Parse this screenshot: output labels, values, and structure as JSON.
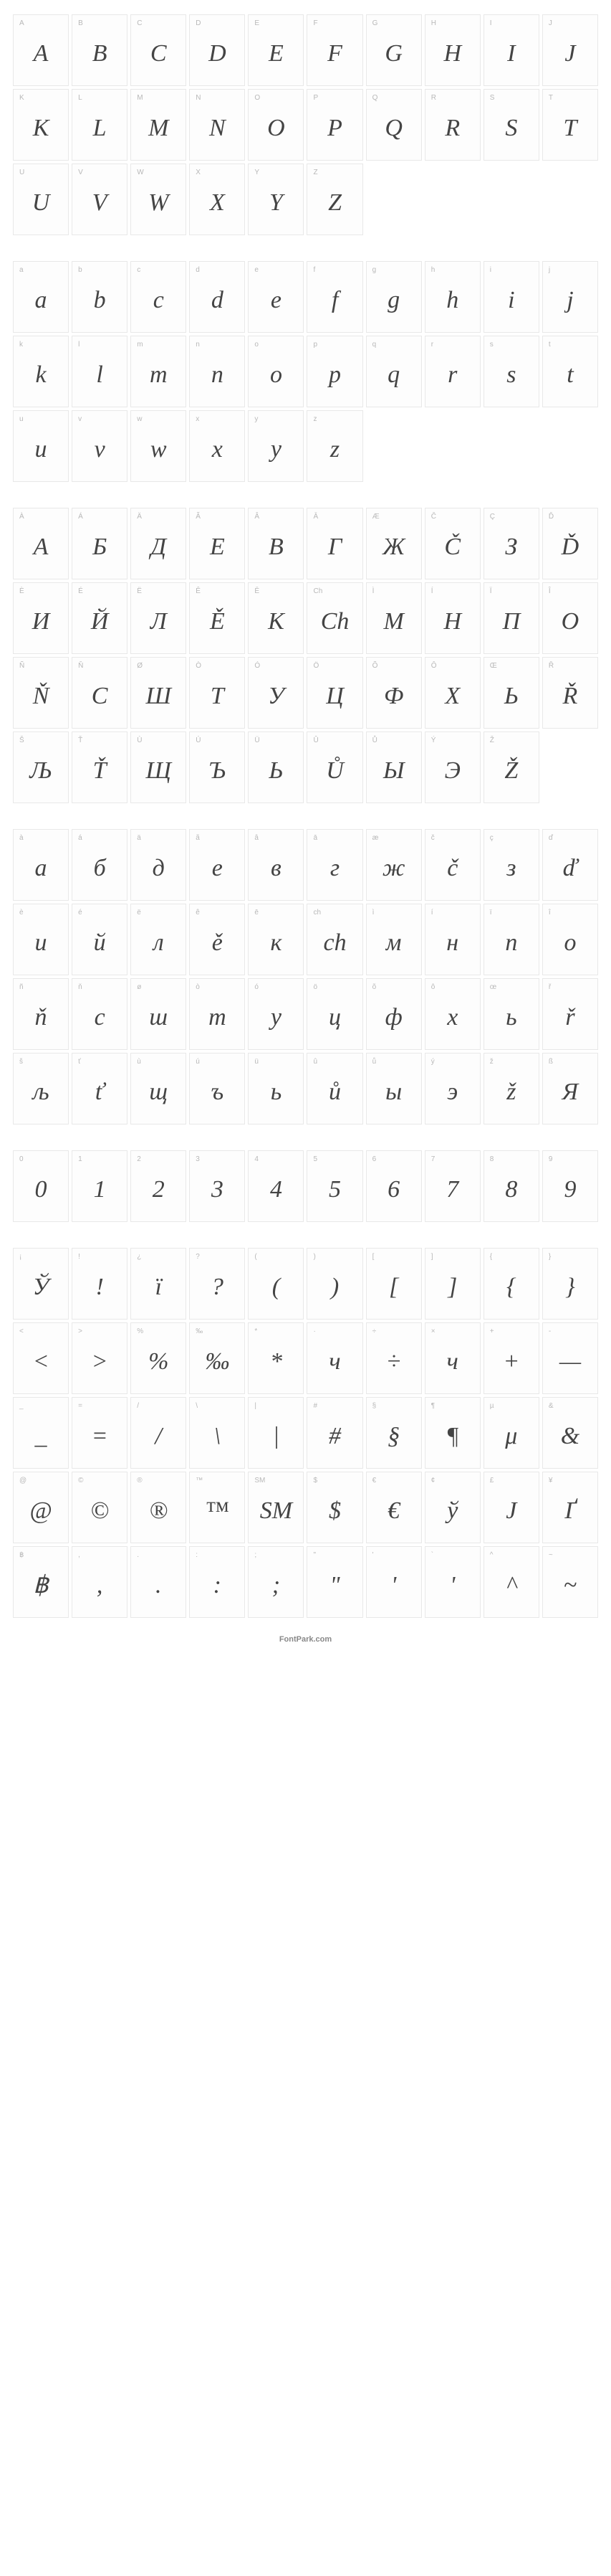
{
  "footer": "FontPark.com",
  "sections": [
    {
      "cells": [
        {
          "key": "A",
          "glyph": "A"
        },
        {
          "key": "B",
          "glyph": "B"
        },
        {
          "key": "C",
          "glyph": "C"
        },
        {
          "key": "D",
          "glyph": "D"
        },
        {
          "key": "E",
          "glyph": "E"
        },
        {
          "key": "F",
          "glyph": "F"
        },
        {
          "key": "G",
          "glyph": "G"
        },
        {
          "key": "H",
          "glyph": "H"
        },
        {
          "key": "I",
          "glyph": "I"
        },
        {
          "key": "J",
          "glyph": "J"
        },
        {
          "key": "K",
          "glyph": "K"
        },
        {
          "key": "L",
          "glyph": "L"
        },
        {
          "key": "M",
          "glyph": "M"
        },
        {
          "key": "N",
          "glyph": "N"
        },
        {
          "key": "O",
          "glyph": "O"
        },
        {
          "key": "P",
          "glyph": "P"
        },
        {
          "key": "Q",
          "glyph": "Q"
        },
        {
          "key": "R",
          "glyph": "R"
        },
        {
          "key": "S",
          "glyph": "S"
        },
        {
          "key": "T",
          "glyph": "T"
        },
        {
          "key": "U",
          "glyph": "U"
        },
        {
          "key": "V",
          "glyph": "V"
        },
        {
          "key": "W",
          "glyph": "W"
        },
        {
          "key": "X",
          "glyph": "X"
        },
        {
          "key": "Y",
          "glyph": "Y"
        },
        {
          "key": "Z",
          "glyph": "Z"
        },
        {
          "empty": true
        },
        {
          "empty": true
        },
        {
          "empty": true
        },
        {
          "empty": true
        }
      ]
    },
    {
      "cells": [
        {
          "key": "a",
          "glyph": "a"
        },
        {
          "key": "b",
          "glyph": "b"
        },
        {
          "key": "c",
          "glyph": "c"
        },
        {
          "key": "d",
          "glyph": "d"
        },
        {
          "key": "e",
          "glyph": "e"
        },
        {
          "key": "f",
          "glyph": "f"
        },
        {
          "key": "g",
          "glyph": "g"
        },
        {
          "key": "h",
          "glyph": "h"
        },
        {
          "key": "i",
          "glyph": "i"
        },
        {
          "key": "j",
          "glyph": "j"
        },
        {
          "key": "k",
          "glyph": "k"
        },
        {
          "key": "l",
          "glyph": "l"
        },
        {
          "key": "m",
          "glyph": "m"
        },
        {
          "key": "n",
          "glyph": "n"
        },
        {
          "key": "o",
          "glyph": "o"
        },
        {
          "key": "p",
          "glyph": "p"
        },
        {
          "key": "q",
          "glyph": "q"
        },
        {
          "key": "r",
          "glyph": "r"
        },
        {
          "key": "s",
          "glyph": "s"
        },
        {
          "key": "t",
          "glyph": "t"
        },
        {
          "key": "u",
          "glyph": "u"
        },
        {
          "key": "v",
          "glyph": "v"
        },
        {
          "key": "w",
          "glyph": "w"
        },
        {
          "key": "x",
          "glyph": "x"
        },
        {
          "key": "y",
          "glyph": "y"
        },
        {
          "key": "z",
          "glyph": "z"
        },
        {
          "empty": true
        },
        {
          "empty": true
        },
        {
          "empty": true
        },
        {
          "empty": true
        }
      ]
    },
    {
      "cells": [
        {
          "key": "À",
          "glyph": "А"
        },
        {
          "key": "Á",
          "glyph": "Б"
        },
        {
          "key": "Ä",
          "glyph": "Д"
        },
        {
          "key": "Ã",
          "glyph": "Е"
        },
        {
          "key": "Â",
          "glyph": "В"
        },
        {
          "key": "Ā",
          "glyph": "Г"
        },
        {
          "key": "Æ",
          "glyph": "Ж"
        },
        {
          "key": "Č",
          "glyph": "Č"
        },
        {
          "key": "Ç",
          "glyph": "З"
        },
        {
          "key": "Ď",
          "glyph": "Ď"
        },
        {
          "key": "È",
          "glyph": "И"
        },
        {
          "key": "É",
          "glyph": "Й"
        },
        {
          "key": "Ë",
          "glyph": "Л"
        },
        {
          "key": "Ê",
          "glyph": "Ě"
        },
        {
          "key": "Ē",
          "glyph": "К"
        },
        {
          "key": "Ch",
          "glyph": "Ch"
        },
        {
          "key": "Ì",
          "glyph": "М"
        },
        {
          "key": "Í",
          "glyph": "Н"
        },
        {
          "key": "Ï",
          "glyph": "П"
        },
        {
          "key": "Î",
          "glyph": "О"
        },
        {
          "key": "Ñ",
          "glyph": "Ň"
        },
        {
          "key": "Ň",
          "glyph": "С"
        },
        {
          "key": "Ø",
          "glyph": "Ш"
        },
        {
          "key": "Ò",
          "glyph": "Т"
        },
        {
          "key": "Ó",
          "glyph": "У"
        },
        {
          "key": "Ö",
          "glyph": "Ц"
        },
        {
          "key": "Õ",
          "glyph": "Ф"
        },
        {
          "key": "Ô",
          "glyph": "Х"
        },
        {
          "key": "Œ",
          "glyph": "Ь"
        },
        {
          "key": "Ř",
          "glyph": "Ř"
        },
        {
          "key": "Š",
          "glyph": "Љ"
        },
        {
          "key": "Ť",
          "glyph": "Ť"
        },
        {
          "key": "Ù",
          "glyph": "Щ"
        },
        {
          "key": "Ú",
          "glyph": "Ъ"
        },
        {
          "key": "Ü",
          "glyph": "Ь"
        },
        {
          "key": "Û",
          "glyph": "Ů"
        },
        {
          "key": "Ů",
          "glyph": "Ы"
        },
        {
          "key": "Ý",
          "glyph": "Э"
        },
        {
          "key": "Ž",
          "glyph": "Ž"
        },
        {
          "empty": true
        }
      ]
    },
    {
      "cells": [
        {
          "key": "à",
          "glyph": "а"
        },
        {
          "key": "á",
          "glyph": "б"
        },
        {
          "key": "ä",
          "glyph": "д"
        },
        {
          "key": "ã",
          "glyph": "е"
        },
        {
          "key": "â",
          "glyph": "в"
        },
        {
          "key": "ā",
          "glyph": "г"
        },
        {
          "key": "æ",
          "glyph": "ж"
        },
        {
          "key": "č",
          "glyph": "č"
        },
        {
          "key": "ç",
          "glyph": "з"
        },
        {
          "key": "ď",
          "glyph": "ď"
        },
        {
          "key": "è",
          "glyph": "и"
        },
        {
          "key": "é",
          "glyph": "й"
        },
        {
          "key": "ë",
          "glyph": "л"
        },
        {
          "key": "ê",
          "glyph": "ě"
        },
        {
          "key": "ē",
          "glyph": "к"
        },
        {
          "key": "ch",
          "glyph": "ch"
        },
        {
          "key": "ì",
          "glyph": "м"
        },
        {
          "key": "í",
          "glyph": "н"
        },
        {
          "key": "ï",
          "glyph": "п"
        },
        {
          "key": "î",
          "glyph": "о"
        },
        {
          "key": "ñ",
          "glyph": "ň"
        },
        {
          "key": "ň",
          "glyph": "с"
        },
        {
          "key": "ø",
          "glyph": "ш"
        },
        {
          "key": "ò",
          "glyph": "т"
        },
        {
          "key": "ó",
          "glyph": "у"
        },
        {
          "key": "ö",
          "glyph": "ц"
        },
        {
          "key": "õ",
          "glyph": "ф"
        },
        {
          "key": "ô",
          "glyph": "х"
        },
        {
          "key": "œ",
          "glyph": "ь"
        },
        {
          "key": "ř",
          "glyph": "ř"
        },
        {
          "key": "š",
          "glyph": "љ"
        },
        {
          "key": "ť",
          "glyph": "ť"
        },
        {
          "key": "ù",
          "glyph": "щ"
        },
        {
          "key": "ú",
          "glyph": "ъ"
        },
        {
          "key": "ü",
          "glyph": "ь"
        },
        {
          "key": "û",
          "glyph": "ů"
        },
        {
          "key": "ů",
          "glyph": "ы"
        },
        {
          "key": "ý",
          "glyph": "э"
        },
        {
          "key": "ž",
          "glyph": "ž"
        },
        {
          "key": "ß",
          "glyph": "Я"
        }
      ]
    },
    {
      "cells": [
        {
          "key": "0",
          "glyph": "0"
        },
        {
          "key": "1",
          "glyph": "1"
        },
        {
          "key": "2",
          "glyph": "2"
        },
        {
          "key": "3",
          "glyph": "3"
        },
        {
          "key": "4",
          "glyph": "4"
        },
        {
          "key": "5",
          "glyph": "5"
        },
        {
          "key": "6",
          "glyph": "6"
        },
        {
          "key": "7",
          "glyph": "7"
        },
        {
          "key": "8",
          "glyph": "8"
        },
        {
          "key": "9",
          "glyph": "9"
        }
      ]
    },
    {
      "cells": [
        {
          "key": "¡",
          "glyph": "Ў"
        },
        {
          "key": "!",
          "glyph": "!"
        },
        {
          "key": "¿",
          "glyph": "ї"
        },
        {
          "key": "?",
          "glyph": "?"
        },
        {
          "key": "(",
          "glyph": "("
        },
        {
          "key": ")",
          "glyph": ")"
        },
        {
          "key": "[",
          "glyph": "["
        },
        {
          "key": "]",
          "glyph": "]"
        },
        {
          "key": "{",
          "glyph": "{"
        },
        {
          "key": "}",
          "glyph": "}"
        },
        {
          "key": "<",
          "glyph": "<"
        },
        {
          "key": ">",
          "glyph": ">"
        },
        {
          "key": "%",
          "glyph": "%"
        },
        {
          "key": "‰",
          "glyph": "‰"
        },
        {
          "key": "*",
          "glyph": "*"
        },
        {
          "key": "·",
          "glyph": "ч"
        },
        {
          "key": "÷",
          "glyph": "÷"
        },
        {
          "key": "×",
          "glyph": "ч"
        },
        {
          "key": "+",
          "glyph": "+"
        },
        {
          "key": "-",
          "glyph": "—"
        },
        {
          "key": "_",
          "glyph": "_"
        },
        {
          "key": "=",
          "glyph": "="
        },
        {
          "key": "/",
          "glyph": "/"
        },
        {
          "key": "\\",
          "glyph": "\\"
        },
        {
          "key": "|",
          "glyph": "|"
        },
        {
          "key": "#",
          "glyph": "#"
        },
        {
          "key": "§",
          "glyph": "§"
        },
        {
          "key": "¶",
          "glyph": "¶"
        },
        {
          "key": "µ",
          "glyph": "μ"
        },
        {
          "key": "&",
          "glyph": "&"
        },
        {
          "key": "@",
          "glyph": "@"
        },
        {
          "key": "©",
          "glyph": "©"
        },
        {
          "key": "®",
          "glyph": "®"
        },
        {
          "key": "™",
          "glyph": "™"
        },
        {
          "key": "SM",
          "glyph": "SM"
        },
        {
          "key": "$",
          "glyph": "$"
        },
        {
          "key": "€",
          "glyph": "€"
        },
        {
          "key": "¢",
          "glyph": "ў"
        },
        {
          "key": "£",
          "glyph": "Ј"
        },
        {
          "key": "¥",
          "glyph": "Ґ"
        },
        {
          "key": "฿",
          "glyph": "฿"
        },
        {
          "key": ",",
          "glyph": ","
        },
        {
          "key": ".",
          "glyph": "."
        },
        {
          "key": ":",
          "glyph": ":"
        },
        {
          "key": ";",
          "glyph": ";"
        },
        {
          "key": "\"",
          "glyph": "\""
        },
        {
          "key": "'",
          "glyph": "'"
        },
        {
          "key": "`",
          "glyph": "'"
        },
        {
          "key": "^",
          "glyph": "^"
        },
        {
          "key": "~",
          "glyph": "~"
        }
      ]
    }
  ]
}
